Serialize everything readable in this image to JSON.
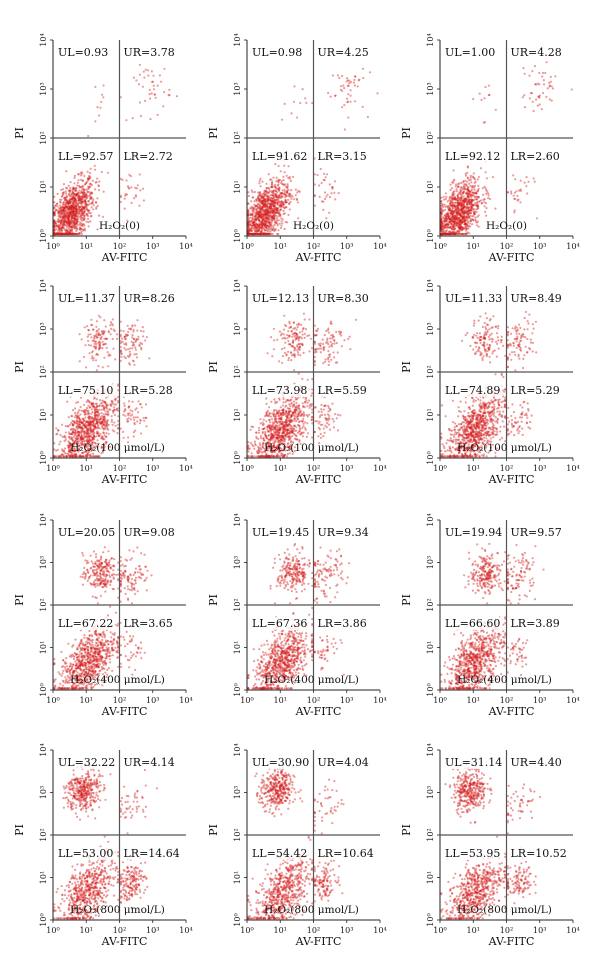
{
  "chart_data": [
    {
      "type": "scatter",
      "axis_scale": "log",
      "xlim": [
        1,
        10000
      ],
      "ylim": [
        1,
        10000
      ],
      "xlabel": "AV-FITC",
      "ylabel": "PI",
      "gate_x": 100,
      "gate_y": 100,
      "condition": "H₂O₂(0)",
      "quadrants": {
        "UL": "UL=0.93",
        "UR": "UR=3.78",
        "LL": "LL=92.57",
        "LR": "LR=2.72"
      },
      "quadrant_values": {
        "UL": 0.93,
        "UR": 3.78,
        "LL": 92.57,
        "LR": 2.72
      }
    },
    {
      "type": "scatter",
      "axis_scale": "log",
      "xlim": [
        1,
        10000
      ],
      "ylim": [
        1,
        10000
      ],
      "xlabel": "AV-FITC",
      "ylabel": "PI",
      "gate_x": 100,
      "gate_y": 100,
      "condition": "H₂O₂(0)",
      "quadrants": {
        "UL": "UL=0.98",
        "UR": "UR=4.25",
        "LL": "LL=91.62",
        "LR": "LR=3.15"
      },
      "quadrant_values": {
        "UL": 0.98,
        "UR": 4.25,
        "LL": 91.62,
        "LR": 3.15
      }
    },
    {
      "type": "scatter",
      "axis_scale": "log",
      "xlim": [
        1,
        10000
      ],
      "ylim": [
        1,
        10000
      ],
      "xlabel": "AV-FITC",
      "ylabel": "PI",
      "gate_x": 100,
      "gate_y": 100,
      "condition": "H₂O₂(0)",
      "quadrants": {
        "UL": "UL=1.00",
        "UR": "UR=4.28",
        "LL": "LL=92.12",
        "LR": "LR=2.60"
      },
      "quadrant_values": {
        "UL": 1.0,
        "UR": 4.28,
        "LL": 92.12,
        "LR": 2.6
      }
    },
    {
      "type": "scatter",
      "axis_scale": "log",
      "xlim": [
        1,
        10000
      ],
      "ylim": [
        1,
        10000
      ],
      "xlabel": "AV-FITC",
      "ylabel": "PI",
      "gate_x": 100,
      "gate_y": 100,
      "condition": "H₂O₂(100 μmol/L)",
      "quadrants": {
        "UL": "UL=11.37",
        "UR": "UR=8.26",
        "LL": "LL=75.10",
        "LR": "LR=5.28"
      },
      "quadrant_values": {
        "UL": 11.37,
        "UR": 8.26,
        "LL": 75.1,
        "LR": 5.28
      }
    },
    {
      "type": "scatter",
      "axis_scale": "log",
      "xlim": [
        1,
        10000
      ],
      "ylim": [
        1,
        10000
      ],
      "xlabel": "AV-FITC",
      "ylabel": "PI",
      "gate_x": 100,
      "gate_y": 100,
      "condition": "H₂O₂(100 μmol/L)",
      "quadrants": {
        "UL": "UL=12.13",
        "UR": "UR=8.30",
        "LL": "LL=73.98",
        "LR": "LR=5.59"
      },
      "quadrant_values": {
        "UL": 12.13,
        "UR": 8.3,
        "LL": 73.98,
        "LR": 5.59
      }
    },
    {
      "type": "scatter",
      "axis_scale": "log",
      "xlim": [
        1,
        10000
      ],
      "ylim": [
        1,
        10000
      ],
      "xlabel": "AV-FITC",
      "ylabel": "PI",
      "gate_x": 100,
      "gate_y": 100,
      "condition": "H₂O₂(100 μmol/L)",
      "quadrants": {
        "UL": "UL=11.33",
        "UR": "UR=8.49",
        "LL": "LL=74.89",
        "LR": "LR=5.29"
      },
      "quadrant_values": {
        "UL": 11.33,
        "UR": 8.49,
        "LL": 74.89,
        "LR": 5.29
      }
    },
    {
      "type": "scatter",
      "axis_scale": "log",
      "xlim": [
        1,
        10000
      ],
      "ylim": [
        1,
        10000
      ],
      "xlabel": "AV-FITC",
      "ylabel": "PI",
      "gate_x": 100,
      "gate_y": 100,
      "condition": "H₂O₂(400 μmol/L)",
      "quadrants": {
        "UL": "UL=20.05",
        "UR": "UR=9.08",
        "LL": "LL=67.22",
        "LR": "LR=3.65"
      },
      "quadrant_values": {
        "UL": 20.05,
        "UR": 9.08,
        "LL": 67.22,
        "LR": 3.65
      }
    },
    {
      "type": "scatter",
      "axis_scale": "log",
      "xlim": [
        1,
        10000
      ],
      "ylim": [
        1,
        10000
      ],
      "xlabel": "AV-FITC",
      "ylabel": "PI",
      "gate_x": 100,
      "gate_y": 100,
      "condition": "H₂O₂(400 μmol/L)",
      "quadrants": {
        "UL": "UL=19.45",
        "UR": "UR=9.34",
        "LL": "LL=67.36",
        "LR": "LR=3.86"
      },
      "quadrant_values": {
        "UL": 19.45,
        "UR": 9.34,
        "LL": 67.36,
        "LR": 3.86
      }
    },
    {
      "type": "scatter",
      "axis_scale": "log",
      "xlim": [
        1,
        10000
      ],
      "ylim": [
        1,
        10000
      ],
      "xlabel": "AV-FITC",
      "ylabel": "PI",
      "gate_x": 100,
      "gate_y": 100,
      "condition": "H₂O₂(400 μmol/L)",
      "quadrants": {
        "UL": "UL=19.94",
        "UR": "UR=9.57",
        "LL": "LL=66.60",
        "LR": "LR=3.89"
      },
      "quadrant_values": {
        "UL": 19.94,
        "UR": 9.57,
        "LL": 66.6,
        "LR": 3.89
      }
    },
    {
      "type": "scatter",
      "axis_scale": "log",
      "xlim": [
        1,
        10000
      ],
      "ylim": [
        1,
        10000
      ],
      "xlabel": "AV-FITC",
      "ylabel": "PI",
      "gate_x": 100,
      "gate_y": 100,
      "condition": "H₂O₂(800 μmol/L)",
      "quadrants": {
        "UL": "UL=32.22",
        "UR": "UR=4.14",
        "LL": "LL=53.00",
        "LR": "LR=14.64"
      },
      "quadrant_values": {
        "UL": 32.22,
        "UR": 4.14,
        "LL": 53.0,
        "LR": 14.64
      }
    },
    {
      "type": "scatter",
      "axis_scale": "log",
      "xlim": [
        1,
        10000
      ],
      "ylim": [
        1,
        10000
      ],
      "xlabel": "AV-FITC",
      "ylabel": "PI",
      "gate_x": 100,
      "gate_y": 100,
      "condition": "H₂O₂(800 μmol/L)",
      "quadrants": {
        "UL": "UL=30.90",
        "UR": "UR=4.04",
        "LL": "LL=54.42",
        "LR": "LR=10.64"
      },
      "quadrant_values": {
        "UL": 30.9,
        "UR": 4.04,
        "LL": 54.42,
        "LR": 10.64
      }
    },
    {
      "type": "scatter",
      "axis_scale": "log",
      "xlim": [
        1,
        10000
      ],
      "ylim": [
        1,
        10000
      ],
      "xlabel": "AV-FITC",
      "ylabel": "PI",
      "gate_x": 100,
      "gate_y": 100,
      "condition": "H₂O₂(800 μmol/L)",
      "quadrants": {
        "UL": "UL=31.14",
        "UR": "UR=4.40",
        "LL": "LL=53.95",
        "LR": "LR=10.52"
      },
      "quadrant_values": {
        "UL": 31.14,
        "UR": 4.4,
        "LL": 53.95,
        "LR": 10.52
      }
    }
  ],
  "axis_tick_labels": [
    "10⁰",
    "10¹",
    "10²",
    "10³",
    "10⁴"
  ],
  "colors": {
    "dots": "#d42020",
    "gate_lines": "#555555",
    "axis": "#222222"
  }
}
